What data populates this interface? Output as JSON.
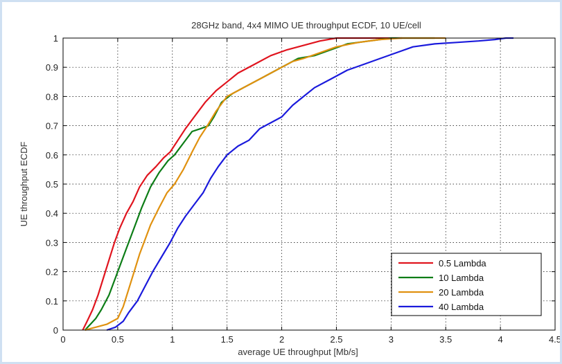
{
  "chart_data": {
    "type": "line",
    "title": "28GHz band, 4x4 MIMO UE throughput ECDF, 10 UE/cell",
    "xlabel": "average UE throughput [Mb/s]",
    "ylabel": "UE throughput ECDF",
    "xlim": [
      0,
      4.5
    ],
    "ylim": [
      0,
      1
    ],
    "xticks": [
      0,
      0.5,
      1,
      1.5,
      2,
      2.5,
      3,
      3.5,
      4,
      4.5
    ],
    "xtick_labels": [
      "0",
      "0.5",
      "1",
      "1.5",
      "2",
      "2.5",
      "3",
      "3.5",
      "4",
      "4.5"
    ],
    "yticks": [
      0,
      0.1,
      0.2,
      0.3,
      0.4,
      0.5,
      0.6,
      0.7,
      0.8,
      0.9,
      1
    ],
    "ytick_labels": [
      "0",
      "0.1",
      "0.2",
      "0.3",
      "0.4",
      "0.5",
      "0.6",
      "0.7",
      "0.8",
      "0.9",
      "1"
    ],
    "grid": true,
    "legend_position": "bottom-right",
    "series": [
      {
        "name": "0.5 Lambda",
        "color": "#e0141e",
        "x": [
          0.18,
          0.22,
          0.27,
          0.32,
          0.37,
          0.42,
          0.47,
          0.52,
          0.58,
          0.64,
          0.7,
          0.77,
          0.85,
          0.92,
          0.98,
          1.05,
          1.12,
          1.2,
          1.3,
          1.4,
          1.5,
          1.6,
          1.75,
          1.9,
          2.05,
          2.2,
          2.35,
          2.5,
          2.7,
          2.95,
          3.1
        ],
        "y": [
          0,
          0.03,
          0.07,
          0.12,
          0.18,
          0.24,
          0.3,
          0.35,
          0.4,
          0.44,
          0.49,
          0.53,
          0.56,
          0.59,
          0.61,
          0.65,
          0.69,
          0.73,
          0.78,
          0.82,
          0.85,
          0.88,
          0.91,
          0.94,
          0.96,
          0.975,
          0.99,
          1.0,
          1.0,
          1.0,
          1.0
        ]
      },
      {
        "name": "10 Lambda",
        "color": "#0c7d16",
        "x": [
          0.2,
          0.25,
          0.3,
          0.35,
          0.42,
          0.5,
          0.58,
          0.65,
          0.72,
          0.8,
          0.88,
          0.96,
          1.02,
          1.1,
          1.18,
          1.26,
          1.33,
          1.38,
          1.45,
          1.55,
          1.65,
          1.75,
          1.85,
          1.95,
          2.05,
          2.15,
          2.3,
          2.45,
          2.6,
          2.8,
          3.0,
          3.2,
          3.4
        ],
        "y": [
          0,
          0.02,
          0.04,
          0.07,
          0.12,
          0.2,
          0.28,
          0.35,
          0.42,
          0.49,
          0.54,
          0.58,
          0.6,
          0.64,
          0.68,
          0.69,
          0.7,
          0.73,
          0.78,
          0.81,
          0.83,
          0.85,
          0.87,
          0.89,
          0.91,
          0.93,
          0.94,
          0.96,
          0.98,
          0.99,
          1.0,
          1.0,
          1.0
        ]
      },
      {
        "name": "20 Lambda",
        "color": "#e0910f",
        "x": [
          0.2,
          0.3,
          0.4,
          0.5,
          0.55,
          0.6,
          0.65,
          0.7,
          0.75,
          0.8,
          0.88,
          0.95,
          1.02,
          1.1,
          1.18,
          1.25,
          1.32,
          1.4,
          1.5,
          1.6,
          1.7,
          1.8,
          1.9,
          2.0,
          2.1,
          2.2,
          2.35,
          2.5,
          2.7,
          2.9,
          3.1,
          3.3,
          3.5
        ],
        "y": [
          0,
          0.01,
          0.02,
          0.04,
          0.08,
          0.14,
          0.2,
          0.26,
          0.31,
          0.36,
          0.42,
          0.47,
          0.5,
          0.55,
          0.61,
          0.66,
          0.7,
          0.75,
          0.8,
          0.82,
          0.84,
          0.86,
          0.88,
          0.9,
          0.92,
          0.93,
          0.95,
          0.97,
          0.985,
          0.995,
          1.0,
          1.0,
          1.0
        ]
      },
      {
        "name": "40 Lambda",
        "color": "#1a1adc",
        "x": [
          0.4,
          0.48,
          0.55,
          0.6,
          0.68,
          0.75,
          0.82,
          0.9,
          0.98,
          1.05,
          1.12,
          1.2,
          1.28,
          1.35,
          1.42,
          1.5,
          1.6,
          1.7,
          1.8,
          1.9,
          2.0,
          2.1,
          2.2,
          2.3,
          2.45,
          2.6,
          2.75,
          2.9,
          3.05,
          3.2,
          3.4,
          3.6,
          3.8,
          3.95,
          4.05,
          4.12
        ],
        "y": [
          0,
          0.01,
          0.03,
          0.06,
          0.1,
          0.15,
          0.2,
          0.25,
          0.3,
          0.35,
          0.39,
          0.43,
          0.47,
          0.52,
          0.56,
          0.6,
          0.63,
          0.65,
          0.69,
          0.71,
          0.73,
          0.77,
          0.8,
          0.83,
          0.86,
          0.89,
          0.91,
          0.93,
          0.95,
          0.97,
          0.98,
          0.985,
          0.99,
          0.995,
          1.0,
          1.0
        ]
      }
    ]
  }
}
